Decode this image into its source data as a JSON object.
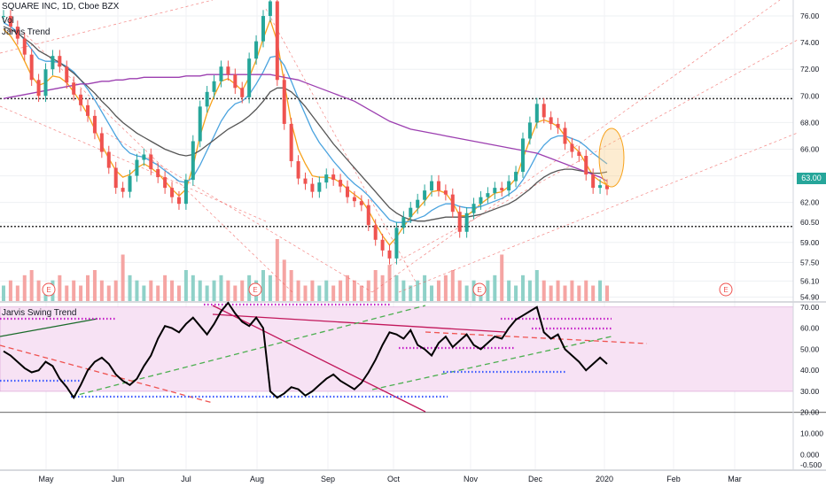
{
  "header": {
    "symbol_line": "SQUARE INC, 1D, Cboe BZX",
    "indicator_1": "Vol",
    "indicator_2": "Jarvis Trend",
    "lower_title": "Jarvis Swing Trend"
  },
  "colors": {
    "up": "#26a69a",
    "down": "#ef5350",
    "up_volume": "#8fd1c8",
    "down_volume": "#f5a5a3",
    "ma_fast": "#f7a21b",
    "ma_mid": "#4aa3df",
    "ma_slow": "#555555",
    "ma_long": "#9c3fb0",
    "oscillator": "#000000"
  },
  "chart_data": [
    {
      "type": "candlestick",
      "title": "SQUARE INC, 1D, Cboe BZX",
      "x_axis_labels": [
        "May",
        "Jun",
        "Jul",
        "Aug",
        "Sep",
        "Oct",
        "Nov",
        "Dec",
        "2020",
        "Feb",
        "Mar"
      ],
      "y_tick_labels": [
        "76.00",
        "74.00",
        "72.00",
        "70.00",
        "68.00",
        "66.00",
        "64.00",
        "62.00",
        "60.50",
        "59.00",
        "57.50",
        "56.10",
        "54.90"
      ],
      "last_price": "63.00",
      "earnings_markers": [
        "E",
        "E",
        "E",
        "E"
      ],
      "horizontal_levels": [
        69.8,
        60.2
      ],
      "ylim": [
        54.6,
        77.2
      ],
      "close_series": [
        76.0,
        75.2,
        74.3,
        73.1,
        71.2,
        70.0,
        72.0,
        73.0,
        72.2,
        71.0,
        70.1,
        69.3,
        68.5,
        67.2,
        65.8,
        64.6,
        63.1,
        62.8,
        64.0,
        65.2,
        65.6,
        64.5,
        63.9,
        63.1,
        62.4,
        61.9,
        63.7,
        66.6,
        69.2,
        70.3,
        71.1,
        72.2,
        71.6,
        70.6,
        69.9,
        72.8,
        74.1,
        76.0,
        77.1,
        71.2,
        67.9,
        65.1,
        63.8,
        63.4,
        62.8,
        63.5,
        64.1,
        63.7,
        63.2,
        62.4,
        62.1,
        61.8,
        60.3,
        59.2,
        58.4,
        57.8,
        60.1,
        60.9,
        61.6,
        62.2,
        62.9,
        63.6,
        62.9,
        62.6,
        61.3,
        59.8,
        61.2,
        61.9,
        62.4,
        62.7,
        63.1,
        62.9,
        63.6,
        64.3,
        66.8,
        68.0,
        69.4,
        68.4,
        67.9,
        67.6,
        66.4,
        65.8,
        65.5,
        64.1,
        63.1,
        63.3,
        63.0
      ],
      "moving_averages": [
        {
          "color_key": "ma_fast",
          "values": [
            75.0,
            74.5,
            73.7,
            72.6,
            71.5,
            70.8,
            71.0,
            71.5,
            71.4,
            71.0,
            70.3,
            69.5,
            68.6,
            67.5,
            66.3,
            65.3,
            64.4,
            63.9,
            64.1,
            64.6,
            64.9,
            64.6,
            64.2,
            63.6,
            63.0,
            62.5,
            63.0,
            64.7,
            67.0,
            68.7,
            70.0,
            71.1,
            71.3,
            70.9,
            70.4,
            71.4,
            72.7,
            74.3,
            75.7,
            74.1,
            71.0,
            68.0,
            66.0,
            64.9,
            64.0,
            63.9,
            63.9,
            63.8,
            63.5,
            63.0,
            62.6,
            62.2,
            61.4,
            60.4,
            59.5,
            58.8,
            59.4,
            60.2,
            60.9,
            61.5,
            62.1,
            62.8,
            62.9,
            62.7,
            62.0,
            61.0,
            61.0,
            61.4,
            61.9,
            62.3,
            62.7,
            62.8,
            63.2,
            63.8,
            65.3,
            66.7,
            68.0,
            68.2,
            68.0,
            67.7,
            67.0,
            66.3,
            65.8,
            64.9,
            64.0,
            63.6,
            63.3
          ]
        },
        {
          "color_key": "ma_mid",
          "values": [
            75.5,
            75.2,
            74.8,
            74.2,
            73.5,
            72.8,
            72.6,
            72.6,
            72.5,
            72.2,
            71.8,
            71.2,
            70.5,
            69.7,
            68.8,
            67.9,
            67.0,
            66.2,
            65.7,
            65.5,
            65.4,
            65.1,
            64.8,
            64.4,
            64.0,
            63.6,
            63.5,
            63.9,
            64.8,
            65.9,
            67.0,
            68.1,
            68.9,
            69.4,
            69.6,
            70.1,
            70.9,
            71.8,
            72.9,
            73.0,
            72.3,
            71.1,
            69.8,
            68.6,
            67.4,
            66.5,
            65.8,
            65.1,
            64.5,
            63.9,
            63.4,
            63.0,
            62.5,
            61.9,
            61.3,
            60.7,
            60.5,
            60.5,
            60.6,
            60.8,
            61.0,
            61.4,
            61.7,
            61.9,
            61.9,
            61.7,
            61.6,
            61.6,
            61.7,
            61.9,
            62.1,
            62.3,
            62.6,
            63.0,
            63.7,
            64.6,
            65.6,
            66.3,
            66.8,
            67.0,
            67.0,
            66.8,
            66.6,
            66.2,
            65.7,
            65.3,
            64.9
          ]
        },
        {
          "color_key": "ma_slow",
          "values": [
            75.2,
            75.0,
            74.7,
            74.3,
            73.9,
            73.4,
            73.1,
            72.8,
            72.5,
            72.1,
            71.7,
            71.2,
            70.7,
            70.2,
            69.6,
            69.1,
            68.5,
            68.0,
            67.6,
            67.2,
            66.9,
            66.6,
            66.3,
            66.0,
            65.8,
            65.6,
            65.5,
            65.6,
            65.9,
            66.3,
            66.7,
            67.1,
            67.5,
            67.8,
            68.1,
            68.5,
            69.0,
            69.6,
            70.3,
            70.6,
            70.6,
            70.3,
            69.8,
            69.2,
            68.5,
            67.8,
            67.1,
            66.4,
            65.8,
            65.2,
            64.6,
            64.0,
            63.4,
            62.8,
            62.2,
            61.6,
            61.2,
            60.9,
            60.7,
            60.6,
            60.6,
            60.7,
            60.8,
            60.9,
            60.9,
            60.9,
            60.9,
            61.0,
            61.1,
            61.3,
            61.5,
            61.7,
            61.9,
            62.2,
            62.6,
            63.0,
            63.5,
            63.9,
            64.2,
            64.4,
            64.5,
            64.5,
            64.4,
            64.3,
            64.2,
            64.2,
            64.3
          ]
        },
        {
          "color_key": "ma_long",
          "values": [
            69.8,
            69.9,
            70.0,
            70.1,
            70.2,
            70.3,
            70.4,
            70.5,
            70.6,
            70.7,
            70.8,
            70.9,
            70.9,
            71.0,
            71.1,
            71.1,
            71.2,
            71.2,
            71.3,
            71.3,
            71.4,
            71.4,
            71.4,
            71.4,
            71.4,
            71.4,
            71.5,
            71.5,
            71.5,
            71.6,
            71.6,
            71.6,
            71.6,
            71.6,
            71.6,
            71.6,
            71.6,
            71.6,
            71.6,
            71.5,
            71.4,
            71.3,
            71.2,
            71.0,
            70.8,
            70.6,
            70.4,
            70.2,
            70.0,
            69.8,
            69.6,
            69.3,
            69.0,
            68.7,
            68.4,
            68.1,
            67.9,
            67.7,
            67.5,
            67.4,
            67.3,
            67.2,
            67.1,
            67.0,
            66.9,
            66.8,
            66.7,
            66.6,
            66.5,
            66.4,
            66.3,
            66.2,
            66.1,
            66.0,
            65.9,
            65.8,
            65.7,
            65.5,
            65.3,
            65.1,
            64.9,
            64.7,
            64.5,
            64.3,
            64.1,
            63.9,
            63.6
          ]
        }
      ],
      "volume_series": [
        3,
        4,
        3,
        5,
        6,
        4,
        3,
        4,
        5,
        3,
        4,
        3,
        5,
        6,
        4,
        3,
        4,
        9,
        5,
        4,
        3,
        4,
        3,
        5,
        4,
        3,
        6,
        5,
        4,
        3,
        4,
        5,
        4,
        3,
        4,
        5,
        4,
        6,
        5,
        12,
        8,
        6,
        4,
        3,
        4,
        3,
        4,
        3,
        4,
        5,
        4,
        3,
        4,
        6,
        5,
        7,
        5,
        4,
        3,
        4,
        5,
        3,
        4,
        5,
        6,
        4,
        3,
        4,
        3,
        4,
        5,
        9,
        4,
        3,
        5,
        4,
        6,
        4,
        3,
        4,
        3,
        4,
        3,
        4,
        3,
        4,
        3
      ]
    },
    {
      "type": "line",
      "title": "Jarvis Swing Trend",
      "y_tick_labels": [
        "70.00",
        "60.00",
        "50.00",
        "40.00",
        "30.00",
        "20.00",
        "10.000",
        "0.000",
        "-0.500"
      ],
      "ylim": [
        -7.0,
        72.0
      ],
      "band": [
        30,
        70
      ],
      "values": [
        49,
        47,
        44,
        41,
        39,
        40,
        44,
        42,
        36,
        32,
        27,
        33,
        40,
        44,
        46,
        43,
        38,
        35,
        33,
        36,
        42,
        47,
        55,
        61,
        60,
        58,
        62,
        65,
        61,
        57,
        62,
        68,
        72,
        67,
        63,
        61,
        65,
        60,
        30,
        27,
        29,
        32,
        31,
        28,
        30,
        33,
        36,
        38,
        35,
        33,
        31,
        34,
        39,
        45,
        52,
        58,
        57,
        55,
        59,
        52,
        50,
        47,
        53,
        56,
        51,
        54,
        57,
        52,
        50,
        53,
        56,
        55,
        60,
        64,
        66,
        68,
        70,
        58,
        55,
        57,
        50,
        47,
        44,
        40,
        43,
        46,
        43
      ]
    }
  ]
}
